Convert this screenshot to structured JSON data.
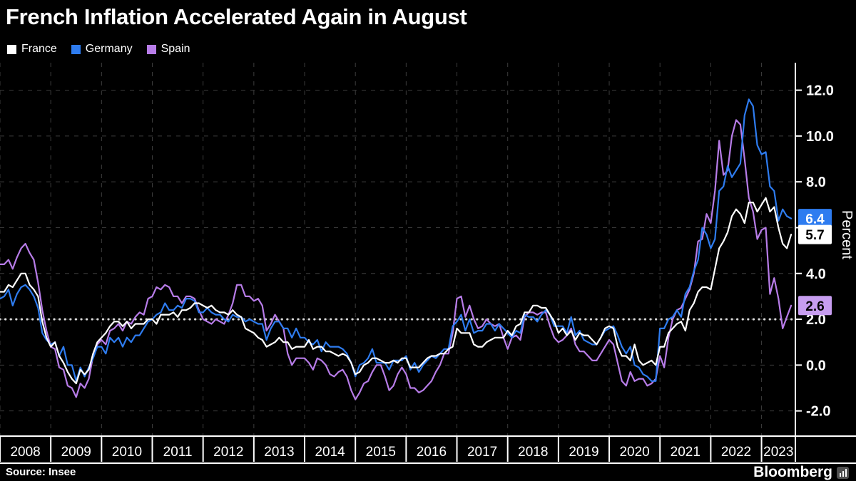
{
  "title": "French Inflation Accelerated Again in August",
  "legend": [
    {
      "label": "France",
      "color": "#ffffff"
    },
    {
      "label": "Germany",
      "color": "#2e7cf0"
    },
    {
      "label": "Spain",
      "color": "#b77ce8"
    }
  ],
  "axis": {
    "y_label": "Percent",
    "y_ticks": [
      {
        "label": "12.0",
        "value": 12
      },
      {
        "label": "10.0",
        "value": 10
      },
      {
        "label": "8.0",
        "value": 8
      },
      {
        "label": "6.0",
        "value": 6
      },
      {
        "label": "4.0",
        "value": 4
      },
      {
        "label": "2.0",
        "value": 2
      },
      {
        "label": "0.0",
        "value": 0
      },
      {
        "label": "-2.0",
        "value": -2
      }
    ],
    "x_ticks": [
      "2008",
      "2009",
      "2010",
      "2011",
      "2012",
      "2013",
      "2014",
      "2015",
      "2016",
      "2017",
      "2018",
      "2019",
      "2020",
      "2021",
      "2022",
      "2023"
    ]
  },
  "target_line": {
    "value": 2.0,
    "color": "#d9d9d9"
  },
  "end_labels": [
    {
      "series": "Germany",
      "label": "6.4",
      "value": 6.4,
      "bg": "#2e7cf0",
      "fg": "#ffffff"
    },
    {
      "series": "France",
      "label": "5.7",
      "value": 5.7,
      "bg": "#ffffff",
      "fg": "#000000"
    },
    {
      "series": "Spain",
      "label": "2.6",
      "value": 2.6,
      "bg": "#c79df0",
      "fg": "#000000"
    }
  ],
  "footer": {
    "source": "Source: Insee",
    "brand": "Bloomberg"
  },
  "chart_data": {
    "type": "line",
    "title": "French Inflation Accelerated Again in August",
    "x_unit": "month",
    "x_start": "2008-01",
    "x_end": "2023-08",
    "xlabel": "",
    "ylabel": "Percent",
    "ylim": [
      -3.1,
      13.2
    ],
    "y_grid_step": 2,
    "grid": true,
    "legend_position": "top-left",
    "years": [
      2008,
      2009,
      2010,
      2011,
      2012,
      2013,
      2014,
      2015,
      2016,
      2017,
      2018,
      2019,
      2020,
      2021,
      2022,
      2023
    ],
    "series": [
      {
        "name": "France",
        "color": "#ffffff",
        "last_value": 5.7,
        "values": [
          3.2,
          3.2,
          3.5,
          3.4,
          3.7,
          4.0,
          4.0,
          3.5,
          3.3,
          3.0,
          1.9,
          1.2,
          0.8,
          1.0,
          0.4,
          0.1,
          -0.3,
          -0.6,
          -0.8,
          -0.2,
          -0.4,
          -0.2,
          0.5,
          1.0,
          1.2,
          1.4,
          1.7,
          1.9,
          1.9,
          1.7,
          1.9,
          1.6,
          1.8,
          1.8,
          1.8,
          2.0,
          2.0,
          1.8,
          2.2,
          2.2,
          2.2,
          2.3,
          2.1,
          2.4,
          2.4,
          2.5,
          2.7,
          2.7,
          2.6,
          2.5,
          2.6,
          2.4,
          2.3,
          2.3,
          2.2,
          2.4,
          2.2,
          2.1,
          1.6,
          1.5,
          1.4,
          1.2,
          1.1,
          0.8,
          0.9,
          1.0,
          1.2,
          1.0,
          1.0,
          0.7,
          0.8,
          0.8,
          0.8,
          1.1,
          0.7,
          0.8,
          0.8,
          0.6,
          0.6,
          0.5,
          0.4,
          0.5,
          0.4,
          0.1,
          -0.4,
          -0.3,
          0.0,
          0.1,
          0.3,
          0.3,
          0.2,
          0.1,
          0.1,
          0.2,
          0.1,
          0.3,
          0.3,
          -0.1,
          -0.1,
          -0.1,
          0.1,
          0.3,
          0.4,
          0.4,
          0.5,
          0.5,
          0.7,
          0.8,
          1.6,
          1.4,
          1.4,
          1.4,
          0.9,
          0.8,
          0.8,
          1.0,
          1.1,
          1.2,
          1.2,
          1.2,
          1.5,
          1.3,
          1.7,
          1.8,
          2.3,
          2.3,
          2.6,
          2.6,
          2.5,
          2.5,
          2.2,
          1.9,
          1.4,
          1.6,
          1.3,
          1.5,
          1.1,
          1.4,
          1.3,
          1.3,
          1.1,
          0.9,
          1.2,
          1.6,
          1.7,
          1.6,
          0.8,
          0.4,
          0.4,
          0.2,
          0.9,
          0.2,
          0.0,
          0.1,
          0.2,
          0.0,
          0.8,
          0.8,
          1.4,
          1.6,
          1.8,
          1.9,
          1.5,
          2.4,
          2.7,
          3.2,
          3.4,
          3.4,
          3.3,
          4.2,
          5.1,
          5.4,
          5.8,
          6.5,
          6.8,
          6.6,
          6.2,
          7.1,
          7.1,
          6.7,
          7.0,
          7.3,
          6.7,
          6.9,
          6.0,
          5.3,
          5.1,
          5.7
        ]
      },
      {
        "name": "Germany",
        "color": "#2e7cf0",
        "last_value": 6.4,
        "values": [
          2.9,
          3.0,
          3.3,
          2.6,
          3.1,
          3.4,
          3.5,
          3.3,
          3.0,
          2.5,
          1.4,
          1.1,
          0.9,
          1.0,
          0.4,
          0.8,
          0.0,
          0.0,
          -0.7,
          -0.1,
          -0.5,
          -0.1,
          0.3,
          0.8,
          0.8,
          0.5,
          1.2,
          1.0,
          1.2,
          0.8,
          1.2,
          1.0,
          1.3,
          1.3,
          1.6,
          1.9,
          2.0,
          2.2,
          2.3,
          2.7,
          2.4,
          2.4,
          2.6,
          2.5,
          2.9,
          2.9,
          2.8,
          2.3,
          2.3,
          2.5,
          2.3,
          2.2,
          2.2,
          2.0,
          1.9,
          2.2,
          2.1,
          2.1,
          1.9,
          2.0,
          1.9,
          1.8,
          1.8,
          1.1,
          1.6,
          1.9,
          1.9,
          1.6,
          1.6,
          1.2,
          1.6,
          1.2,
          1.2,
          1.0,
          0.9,
          1.1,
          0.6,
          1.0,
          0.8,
          0.8,
          0.8,
          0.7,
          0.5,
          0.1,
          -0.5,
          0.0,
          0.1,
          0.3,
          0.7,
          0.1,
          0.1,
          0.1,
          -0.2,
          0.2,
          0.2,
          0.2,
          0.4,
          -0.2,
          0.1,
          -0.3,
          0.0,
          0.2,
          0.4,
          0.3,
          0.5,
          0.7,
          0.7,
          1.7,
          1.9,
          2.2,
          1.5,
          2.0,
          1.4,
          1.5,
          1.5,
          1.8,
          1.8,
          1.5,
          1.8,
          1.6,
          1.4,
          1.2,
          1.5,
          1.4,
          2.2,
          2.1,
          2.1,
          1.9,
          2.2,
          2.4,
          2.2,
          1.7,
          1.7,
          1.7,
          1.4,
          2.1,
          1.3,
          1.5,
          1.1,
          1.0,
          0.9,
          0.9,
          1.2,
          1.5,
          1.6,
          1.7,
          1.3,
          0.8,
          0.5,
          0.8,
          0.0,
          -0.1,
          -0.4,
          -0.5,
          -0.7,
          -0.7,
          1.6,
          1.6,
          2.0,
          2.1,
          2.4,
          2.1,
          3.1,
          3.4,
          4.1,
          4.6,
          6.0,
          5.7,
          5.1,
          5.5,
          7.6,
          7.8,
          8.7,
          8.2,
          8.5,
          8.8,
          10.9,
          11.6,
          11.3,
          9.6,
          9.2,
          9.3,
          7.8,
          7.6,
          6.3,
          6.8,
          6.5,
          6.4
        ]
      },
      {
        "name": "Spain",
        "color": "#b77ce8",
        "last_value": 2.6,
        "values": [
          4.4,
          4.4,
          4.6,
          4.2,
          4.7,
          5.1,
          5.3,
          4.9,
          4.6,
          3.6,
          2.4,
          1.5,
          0.8,
          0.7,
          -0.1,
          -0.2,
          -0.9,
          -1.0,
          -1.4,
          -0.8,
          -1.0,
          -0.6,
          0.4,
          0.9,
          1.1,
          0.9,
          1.5,
          1.6,
          1.8,
          1.5,
          1.9,
          1.8,
          2.1,
          2.3,
          2.2,
          2.9,
          3.0,
          3.4,
          3.3,
          3.5,
          3.4,
          3.0,
          3.0,
          2.7,
          3.0,
          3.0,
          2.9,
          2.4,
          2.0,
          1.9,
          1.8,
          2.0,
          1.9,
          1.8,
          2.2,
          2.7,
          3.5,
          3.5,
          3.0,
          3.0,
          2.8,
          2.9,
          2.6,
          1.5,
          1.8,
          2.2,
          1.9,
          1.6,
          0.5,
          0.0,
          0.3,
          0.3,
          0.3,
          0.1,
          -0.2,
          0.3,
          0.2,
          0.0,
          -0.4,
          -0.5,
          -0.3,
          -0.2,
          -0.5,
          -1.1,
          -1.5,
          -1.2,
          -0.8,
          -0.7,
          -0.3,
          0.0,
          0.0,
          -0.5,
          -1.1,
          -0.9,
          -0.4,
          -0.1,
          -0.4,
          -1.0,
          -1.0,
          -1.2,
          -1.1,
          -0.9,
          -0.7,
          -0.3,
          0.0,
          0.5,
          0.5,
          1.4,
          2.9,
          3.0,
          2.1,
          2.6,
          2.0,
          1.6,
          1.7,
          2.0,
          1.8,
          1.7,
          1.8,
          1.2,
          0.7,
          1.2,
          1.3,
          1.1,
          2.1,
          2.3,
          2.3,
          2.2,
          2.3,
          2.3,
          1.7,
          1.2,
          1.0,
          1.1,
          1.3,
          1.6,
          0.9,
          0.6,
          0.6,
          0.4,
          0.2,
          0.2,
          0.5,
          0.8,
          1.1,
          0.9,
          0.1,
          -0.7,
          -0.9,
          -0.3,
          -0.7,
          -0.6,
          -0.6,
          -0.9,
          -0.8,
          -0.6,
          0.4,
          -0.1,
          1.2,
          2.0,
          2.4,
          2.5,
          2.9,
          3.3,
          4.0,
          5.4,
          5.5,
          6.6,
          6.2,
          7.6,
          9.8,
          8.3,
          8.5,
          10.0,
          10.7,
          10.5,
          9.0,
          7.3,
          6.7,
          5.5,
          5.9,
          6.0,
          3.1,
          3.8,
          2.9,
          1.6,
          2.1,
          2.6
        ]
      }
    ]
  }
}
